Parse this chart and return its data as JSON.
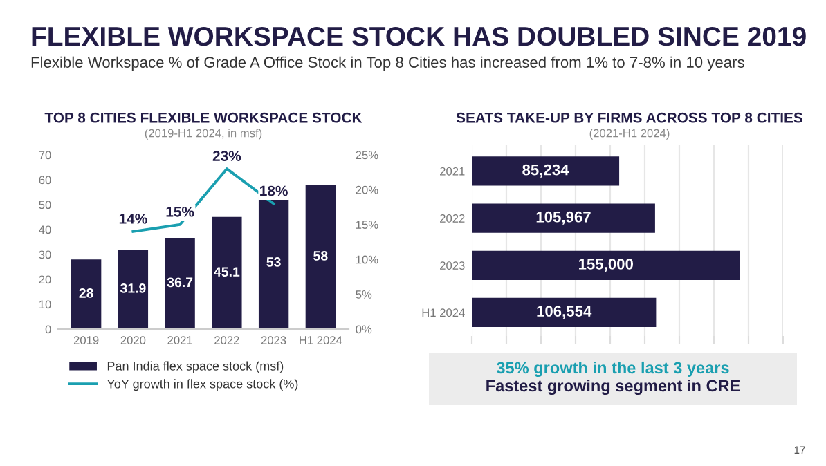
{
  "chart_data": [
    {
      "type": "bar",
      "title": "TOP 8 CITIES FLEXIBLE WORKSPACE STOCK",
      "subtitle": "(2019-H1 2024, in msf)",
      "annotations": [
        "FLEXIBLE WORKSPACE STOCK HAS DOUBLED SINCE 2019",
        "Flexible Workspace % of Grade A Office Stock in Top 8 Cities has increased from 1% to 7-8% in 10 years"
      ],
      "categories": [
        "2019",
        "2020",
        "2021",
        "2022",
        "2023",
        "H1 2024"
      ],
      "series": [
        {
          "name": "Pan India flex space stock (msf)",
          "type": "bar",
          "color": "#221c46",
          "values": [
            28,
            31.9,
            36.7,
            45.1,
            53,
            58
          ],
          "value_labels": [
            "28",
            "31.9",
            "36.7",
            "45.1",
            "53",
            "58"
          ]
        },
        {
          "name": "YoY growth in flex space stock (%)",
          "type": "line",
          "axis": "y2",
          "color": "#1a9fb0",
          "values": [
            null,
            14,
            15,
            23,
            18,
            null
          ],
          "value_labels": [
            null,
            "14%",
            "15%",
            "23%",
            "18%",
            null
          ]
        }
      ],
      "ylim": [
        0,
        70
      ],
      "yticks": [
        0,
        10,
        20,
        30,
        40,
        50,
        60,
        70
      ],
      "y2lim": [
        0,
        25
      ],
      "y2ticks": [
        {
          "value": 0,
          "label": "0%"
        },
        {
          "value": 5,
          "label": "5%"
        },
        {
          "value": 10,
          "label": "10%"
        },
        {
          "value": 15,
          "label": "15%"
        },
        {
          "value": 20,
          "label": "20%"
        },
        {
          "value": 25,
          "label": "25%"
        }
      ],
      "legend": "bottom",
      "marker": "none",
      "line_style": "solid"
    },
    {
      "type": "bar",
      "orientation": "horizontal",
      "title": "SEATS TAKE-UP BY FIRMS ACROSS TOP 8 CITIES",
      "subtitle": "(2021-H1 2024)",
      "annotations": [
        "35% growth in the last 3 years",
        "Fastest growing segment in CRE",
        "17"
      ],
      "categories": [
        "2021",
        "2022",
        "2023",
        "H1 2024"
      ],
      "series": [
        {
          "color": "#221c46",
          "values": [
            85234,
            105967,
            155000,
            106554
          ],
          "value_labels": [
            "85,234",
            "105,967",
            "155,000",
            "106,554"
          ]
        }
      ],
      "xlim": [
        0,
        180000
      ],
      "xticks": [
        {
          "value": 0,
          "label": null
        },
        {
          "value": 20000,
          "label": null
        },
        {
          "value": 40000,
          "label": null
        },
        {
          "value": 60000,
          "label": null
        },
        {
          "value": 80000,
          "label": null
        },
        {
          "value": 100000,
          "label": null
        },
        {
          "value": 120000,
          "label": null
        },
        {
          "value": 140000,
          "label": null
        },
        {
          "value": 160000,
          "label": null
        },
        {
          "value": 180000,
          "label": null
        }
      ],
      "tick_labels": "y",
      "grid": "x"
    }
  ]
}
